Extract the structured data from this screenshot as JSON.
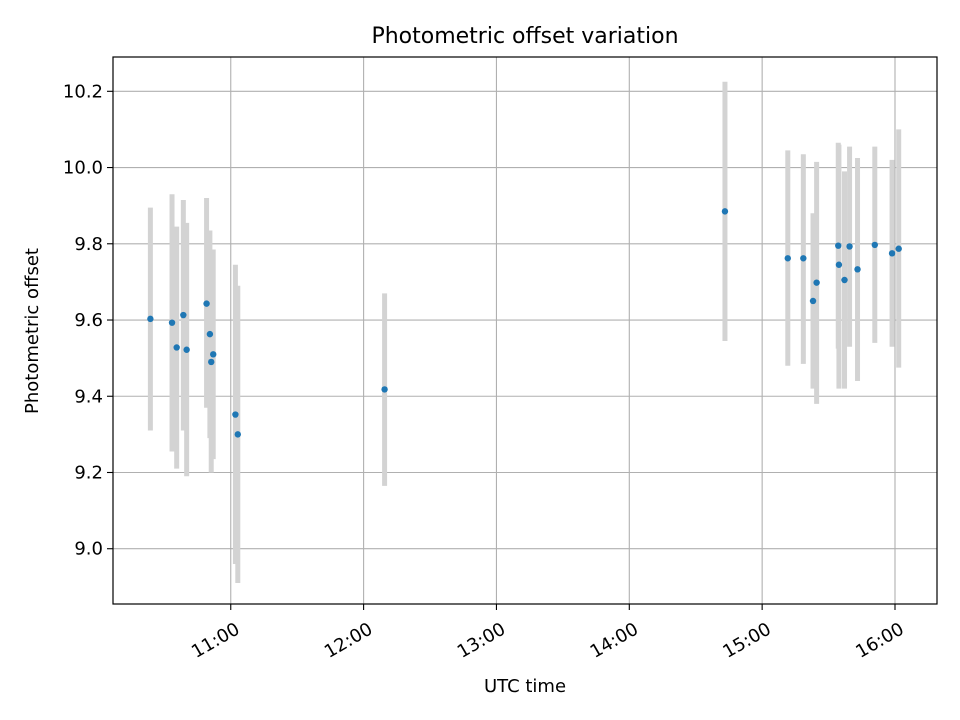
{
  "chart_data": {
    "type": "scatter",
    "title": "Photometric offset variation",
    "xlabel": "UTC time",
    "ylabel": "Photometric offset",
    "xlim_hours": [
      10.1136,
      16.3162
    ],
    "ylim": [
      8.855,
      10.29
    ],
    "grid": true,
    "xticks": [
      {
        "value": 11,
        "label": "11:00"
      },
      {
        "value": 12,
        "label": "12:00"
      },
      {
        "value": 13,
        "label": "13:00"
      },
      {
        "value": 14,
        "label": "14:00"
      },
      {
        "value": 15,
        "label": "15:00"
      },
      {
        "value": 16,
        "label": "16:00"
      }
    ],
    "yticks": [
      {
        "value": 9.0,
        "label": "9.0"
      },
      {
        "value": 9.2,
        "label": "9.2"
      },
      {
        "value": 9.4,
        "label": "9.4"
      },
      {
        "value": 9.6,
        "label": "9.6"
      },
      {
        "value": 9.8,
        "label": "9.8"
      },
      {
        "value": 10.0,
        "label": "10.0"
      },
      {
        "value": 10.2,
        "label": "10.2"
      }
    ],
    "points": [
      {
        "time_h": 10.395,
        "y": 9.603,
        "lo": 9.31,
        "hi": 9.895
      },
      {
        "time_h": 10.558,
        "y": 9.593,
        "lo": 9.255,
        "hi": 9.93
      },
      {
        "time_h": 10.593,
        "y": 9.528,
        "lo": 9.21,
        "hi": 9.845
      },
      {
        "time_h": 10.643,
        "y": 9.613,
        "lo": 9.31,
        "hi": 9.915
      },
      {
        "time_h": 10.668,
        "y": 9.522,
        "lo": 9.19,
        "hi": 9.855
      },
      {
        "time_h": 10.818,
        "y": 9.643,
        "lo": 9.37,
        "hi": 9.92
      },
      {
        "time_h": 10.843,
        "y": 9.563,
        "lo": 9.29,
        "hi": 9.835
      },
      {
        "time_h": 10.853,
        "y": 9.49,
        "lo": 9.2,
        "hi": 9.78
      },
      {
        "time_h": 10.868,
        "y": 9.51,
        "lo": 9.235,
        "hi": 9.785
      },
      {
        "time_h": 11.035,
        "y": 9.352,
        "lo": 8.96,
        "hi": 9.745
      },
      {
        "time_h": 11.053,
        "y": 9.3,
        "lo": 8.91,
        "hi": 9.69
      },
      {
        "time_h": 12.158,
        "y": 9.418,
        "lo": 9.165,
        "hi": 9.67
      },
      {
        "time_h": 14.72,
        "y": 9.885,
        "lo": 9.545,
        "hi": 10.225
      },
      {
        "time_h": 15.193,
        "y": 9.762,
        "lo": 9.48,
        "hi": 10.045
      },
      {
        "time_h": 15.31,
        "y": 9.762,
        "lo": 9.485,
        "hi": 10.035
      },
      {
        "time_h": 15.383,
        "y": 9.65,
        "lo": 9.42,
        "hi": 9.88
      },
      {
        "time_h": 15.41,
        "y": 9.698,
        "lo": 9.38,
        "hi": 10.015
      },
      {
        "time_h": 15.573,
        "y": 9.795,
        "lo": 9.525,
        "hi": 10.065
      },
      {
        "time_h": 15.578,
        "y": 9.745,
        "lo": 9.42,
        "hi": 10.06
      },
      {
        "time_h": 15.62,
        "y": 9.705,
        "lo": 9.42,
        "hi": 9.99
      },
      {
        "time_h": 15.658,
        "y": 9.793,
        "lo": 9.53,
        "hi": 10.055
      },
      {
        "time_h": 15.718,
        "y": 9.733,
        "lo": 9.44,
        "hi": 10.025
      },
      {
        "time_h": 15.848,
        "y": 9.797,
        "lo": 9.54,
        "hi": 10.055
      },
      {
        "time_h": 15.978,
        "y": 9.775,
        "lo": 9.53,
        "hi": 10.02
      },
      {
        "time_h": 16.028,
        "y": 9.787,
        "lo": 9.475,
        "hi": 10.1
      }
    ]
  }
}
